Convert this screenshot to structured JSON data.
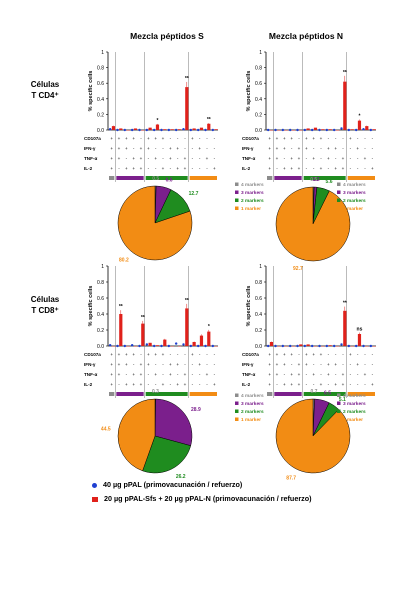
{
  "column_headers": [
    "Mezcla péptidos S",
    "Mezcla péptidos N"
  ],
  "row_headers": [
    {
      "line1": "Células",
      "line2": "T CD4⁺"
    },
    {
      "line1": "Células",
      "line2": "T CD8⁺"
    }
  ],
  "legend": {
    "group1": {
      "label": "40 µg pPAL (primovacunación / refuerzo)",
      "color": "#1f3fd1"
    },
    "group2": {
      "label": "20 µg pPAL-Sfs + 20 µg pPAL-N (primovacunación / refuerzo)",
      "color": "#e0211b"
    }
  },
  "colors": {
    "marker4": "#8c8c8c",
    "marker3": "#7b1f8c",
    "marker2": "#1f8c1f",
    "marker1": "#f28c14",
    "group2": "#e0211b",
    "group1": "#1f3fd1"
  },
  "marker_labels": [
    "4 markers",
    "3 markers",
    "2 markers",
    "1 marker"
  ],
  "bool_labels": [
    "CD107a",
    "IFN-γ",
    "TNF-α",
    "IL-2"
  ],
  "chart_data": [
    {
      "type": "bar",
      "panel": "CD4 S",
      "ylabel": "% specific cells",
      "ylim": [
        0,
        1
      ],
      "yticks": [
        "0.0",
        "0.2",
        "0.4",
        "0.6",
        "0.8",
        "1"
      ],
      "series": [
        {
          "values": [
            0.01,
            0.0,
            0.0,
            0.0,
            0.0,
            0.0,
            0.0,
            0.0,
            0.0,
            0.0,
            0.01,
            0.0,
            0.0,
            0.0,
            0.0
          ]
        },
        {
          "values": [
            0.05,
            0.02,
            0.0,
            0.02,
            0.0,
            0.03,
            0.07,
            0.01,
            0.01,
            0.01,
            0.55,
            0.02,
            0.03,
            0.08,
            0.01
          ]
        }
      ],
      "sig_marks": [
        {
          "bar": 6,
          "text": "*"
        },
        {
          "bar": 10,
          "text": "**"
        },
        {
          "bar": 13,
          "text": "**"
        }
      ],
      "pie": [
        {
          "marker": "4 markers",
          "value": 0.5
        },
        {
          "marker": "3 markers",
          "value": 6.6
        },
        {
          "marker": "2 markers",
          "value": 12.7
        },
        {
          "marker": "1 marker",
          "value": 80.2
        }
      ]
    },
    {
      "type": "bar",
      "panel": "CD4 N",
      "ylabel": "% specific cells",
      "ylim": [
        0,
        1
      ],
      "yticks": [
        "0.0",
        "0.2",
        "0.4",
        "0.6",
        "0.8",
        "1"
      ],
      "series": [
        {
          "values": [
            0.0,
            0.0,
            0.0,
            0.0,
            0.0,
            0.0,
            0.0,
            0.0,
            0.0,
            0.0,
            0.02,
            0.0,
            0.0,
            0.01,
            0.0
          ]
        },
        {
          "values": [
            0.0,
            0.0,
            0.0,
            0.0,
            0.0,
            0.02,
            0.03,
            0.01,
            0.01,
            0.0,
            0.62,
            0.01,
            0.12,
            0.05,
            0.01
          ]
        }
      ],
      "sig_marks": [
        {
          "bar": 10,
          "text": "**"
        },
        {
          "bar": 12,
          "text": "*"
        }
      ],
      "pie": [
        {
          "marker": "4 markers",
          "value": 0.5
        },
        {
          "marker": "3 markers",
          "value": 1.2
        },
        {
          "marker": "2 markers",
          "value": 5.6
        },
        {
          "marker": "1 marker",
          "value": 92.7
        }
      ]
    },
    {
      "type": "bar",
      "panel": "CD8 S",
      "ylabel": "% specific cells",
      "ylim": [
        0,
        1
      ],
      "yticks": [
        "0.0",
        "0.2",
        "0.4",
        "0.6",
        "0.8",
        "1"
      ],
      "series": [
        {
          "values": [
            0.01,
            0.0,
            0.0,
            0.01,
            0.0,
            0.02,
            0.0,
            0.0,
            0.0,
            0.03,
            0.02,
            0.0,
            0.0,
            0.0,
            0.0
          ]
        },
        {
          "values": [
            0.0,
            0.4,
            0.0,
            0.0,
            0.28,
            0.04,
            0.01,
            0.08,
            0.0,
            0.0,
            0.47,
            0.05,
            0.13,
            0.18,
            0.0
          ]
        }
      ],
      "sig_marks": [
        {
          "bar": 1,
          "text": "**"
        },
        {
          "bar": 4,
          "text": "**"
        },
        {
          "bar": 10,
          "text": "**"
        },
        {
          "bar": 13,
          "text": "*"
        }
      ],
      "pie": [
        {
          "marker": "4 markers",
          "value": 0.3
        },
        {
          "marker": "3 markers",
          "value": 28.9
        },
        {
          "marker": "2 markers",
          "value": 26.2
        },
        {
          "marker": "1 marker",
          "value": 44.5
        }
      ]
    },
    {
      "type": "bar",
      "panel": "CD8 N",
      "ylabel": "% specific cells",
      "ylim": [
        0,
        1
      ],
      "yticks": [
        "0.0",
        "0.2",
        "0.4",
        "0.6",
        "0.8",
        "1"
      ],
      "series": [
        {
          "values": [
            0.0,
            0.0,
            0.0,
            0.0,
            0.0,
            0.0,
            0.0,
            0.0,
            0.0,
            0.0,
            0.02,
            0.0,
            0.0,
            0.0,
            0.0
          ]
        },
        {
          "values": [
            0.05,
            0.0,
            0.0,
            0.0,
            0.02,
            0.02,
            0.0,
            0.0,
            0.01,
            0.0,
            0.44,
            0.0,
            0.15,
            0.0,
            0.0
          ]
        }
      ],
      "sig_marks": [
        {
          "bar": 10,
          "text": "**"
        },
        {
          "bar": 12,
          "text": "ns"
        }
      ],
      "pie": [
        {
          "marker": "4 markers",
          "value": 0.7
        },
        {
          "marker": "3 markers",
          "value": 6.5
        },
        {
          "marker": "2 markers",
          "value": 5.1
        },
        {
          "marker": "1 marker",
          "value": 87.7
        }
      ]
    }
  ]
}
